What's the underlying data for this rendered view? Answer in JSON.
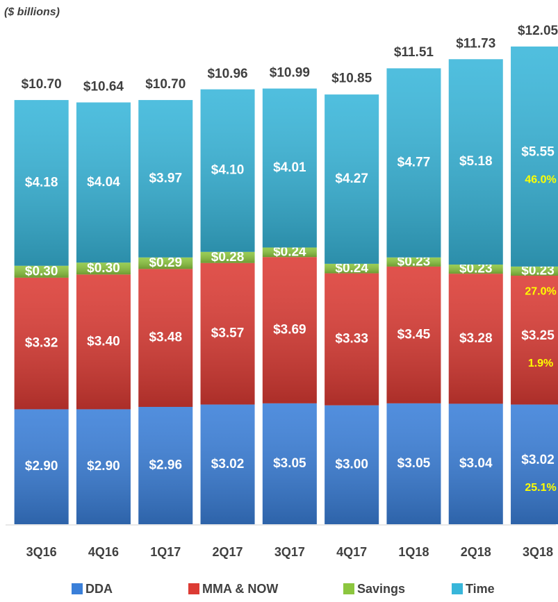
{
  "chart_data": {
    "type": "stacked_bar",
    "subtitle": "($ billions)",
    "categories": [
      "3Q16",
      "4Q16",
      "1Q17",
      "2Q17",
      "3Q17",
      "4Q17",
      "1Q18",
      "2Q18",
      "3Q18"
    ],
    "series": [
      {
        "name": "DDA",
        "color": "#3a7fd9",
        "values": [
          2.9,
          2.9,
          2.96,
          3.02,
          3.05,
          3.0,
          3.05,
          3.04,
          3.02
        ],
        "value_labels": [
          "$2.90",
          "$2.90",
          "$2.96",
          "$3.02",
          "$3.05",
          "$3.00",
          "$3.05",
          "$3.04",
          "$3.02"
        ]
      },
      {
        "name": "MMA & NOW",
        "color": "#dc3b34",
        "values": [
          3.32,
          3.4,
          3.48,
          3.57,
          3.69,
          3.33,
          3.45,
          3.28,
          3.25
        ],
        "value_labels": [
          "$3.32",
          "$3.40",
          "$3.48",
          "$3.57",
          "$3.69",
          "$3.33",
          "$3.45",
          "$3.28",
          "$3.25"
        ]
      },
      {
        "name": "Savings",
        "color": "#8cc63f",
        "values": [
          0.3,
          0.3,
          0.29,
          0.28,
          0.24,
          0.24,
          0.23,
          0.23,
          0.23
        ],
        "value_labels": [
          "$0.30",
          "$0.30",
          "$0.29",
          "$0.28",
          "$0.24",
          "$0.24",
          "$0.23",
          "$0.23",
          "$0.23"
        ]
      },
      {
        "name": "Time",
        "color": "#38b6da",
        "values": [
          4.18,
          4.04,
          3.97,
          4.1,
          4.01,
          4.27,
          4.77,
          5.18,
          5.55
        ],
        "value_labels": [
          "$4.18",
          "$4.04",
          "$3.97",
          "$4.10",
          "$4.01",
          "$4.27",
          "$4.77",
          "$5.18",
          "$5.55"
        ]
      }
    ],
    "totals": {
      "values": [
        10.7,
        10.64,
        10.7,
        10.96,
        10.99,
        10.85,
        11.51,
        11.73,
        12.05
      ],
      "value_labels": [
        "$10.70",
        "$10.64",
        "$10.70",
        "$10.96",
        "$10.99",
        "$10.85",
        "$11.51",
        "$11.73",
        "$12.05"
      ]
    },
    "shares": {
      "values": [
        25.1,
        1.9,
        27.0,
        46.0
      ],
      "value_labels": [
        "25.1%",
        "1.9%",
        "27.0%",
        "46.0%"
      ]
    }
  }
}
